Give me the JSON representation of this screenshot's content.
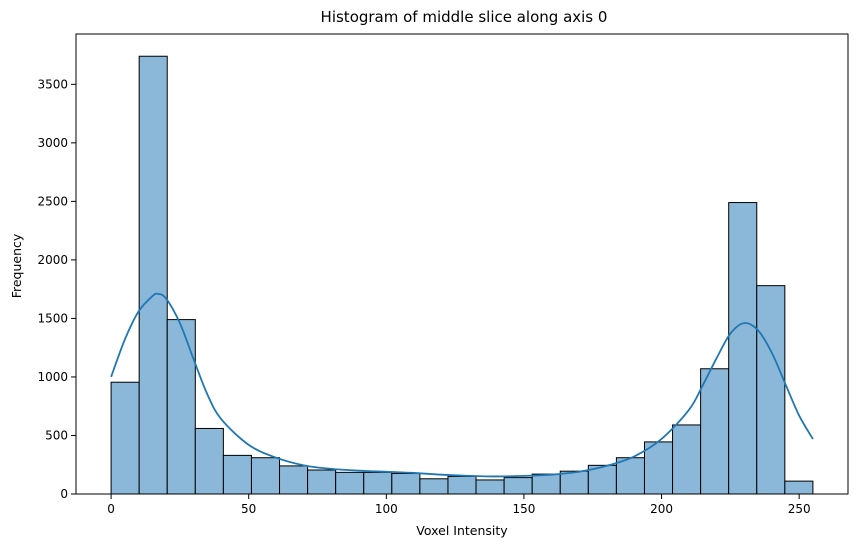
{
  "chart_data": {
    "type": "bar",
    "title": "Histogram of middle slice along axis 0",
    "xlabel": "Voxel Intensity",
    "ylabel": "Frequency",
    "xlim": [
      -12.75,
      267.75
    ],
    "ylim": [
      0,
      3930
    ],
    "xticks": [
      0,
      50,
      100,
      150,
      200,
      250
    ],
    "yticks": [
      0,
      500,
      1000,
      1500,
      2000,
      2500,
      3000,
      3500
    ],
    "bin_width": 10.2,
    "bin_edges_start": 0,
    "values": [
      955,
      3740,
      1490,
      560,
      330,
      310,
      240,
      205,
      185,
      185,
      175,
      130,
      150,
      120,
      140,
      170,
      195,
      245,
      310,
      445,
      590,
      1070,
      2490,
      1780,
      110
    ],
    "kde": {
      "x": [
        0,
        5,
        10,
        15,
        17,
        20,
        25,
        30,
        35,
        40,
        50,
        60,
        70,
        80,
        90,
        100,
        110,
        120,
        130,
        140,
        150,
        160,
        170,
        180,
        190,
        200,
        210,
        215,
        220,
        225,
        230,
        235,
        240,
        245,
        250,
        255
      ],
      "y": [
        1000,
        1320,
        1560,
        1690,
        1710,
        1670,
        1460,
        1150,
        850,
        640,
        420,
        310,
        245,
        215,
        200,
        190,
        180,
        165,
        155,
        150,
        155,
        165,
        190,
        240,
        320,
        470,
        720,
        930,
        1160,
        1370,
        1460,
        1400,
        1210,
        940,
        670,
        470
      ]
    },
    "bar_color": "#8bb8d9",
    "bar_edge": "#000000",
    "kde_color": "#1f77b4",
    "grid": false,
    "legend": "none"
  }
}
